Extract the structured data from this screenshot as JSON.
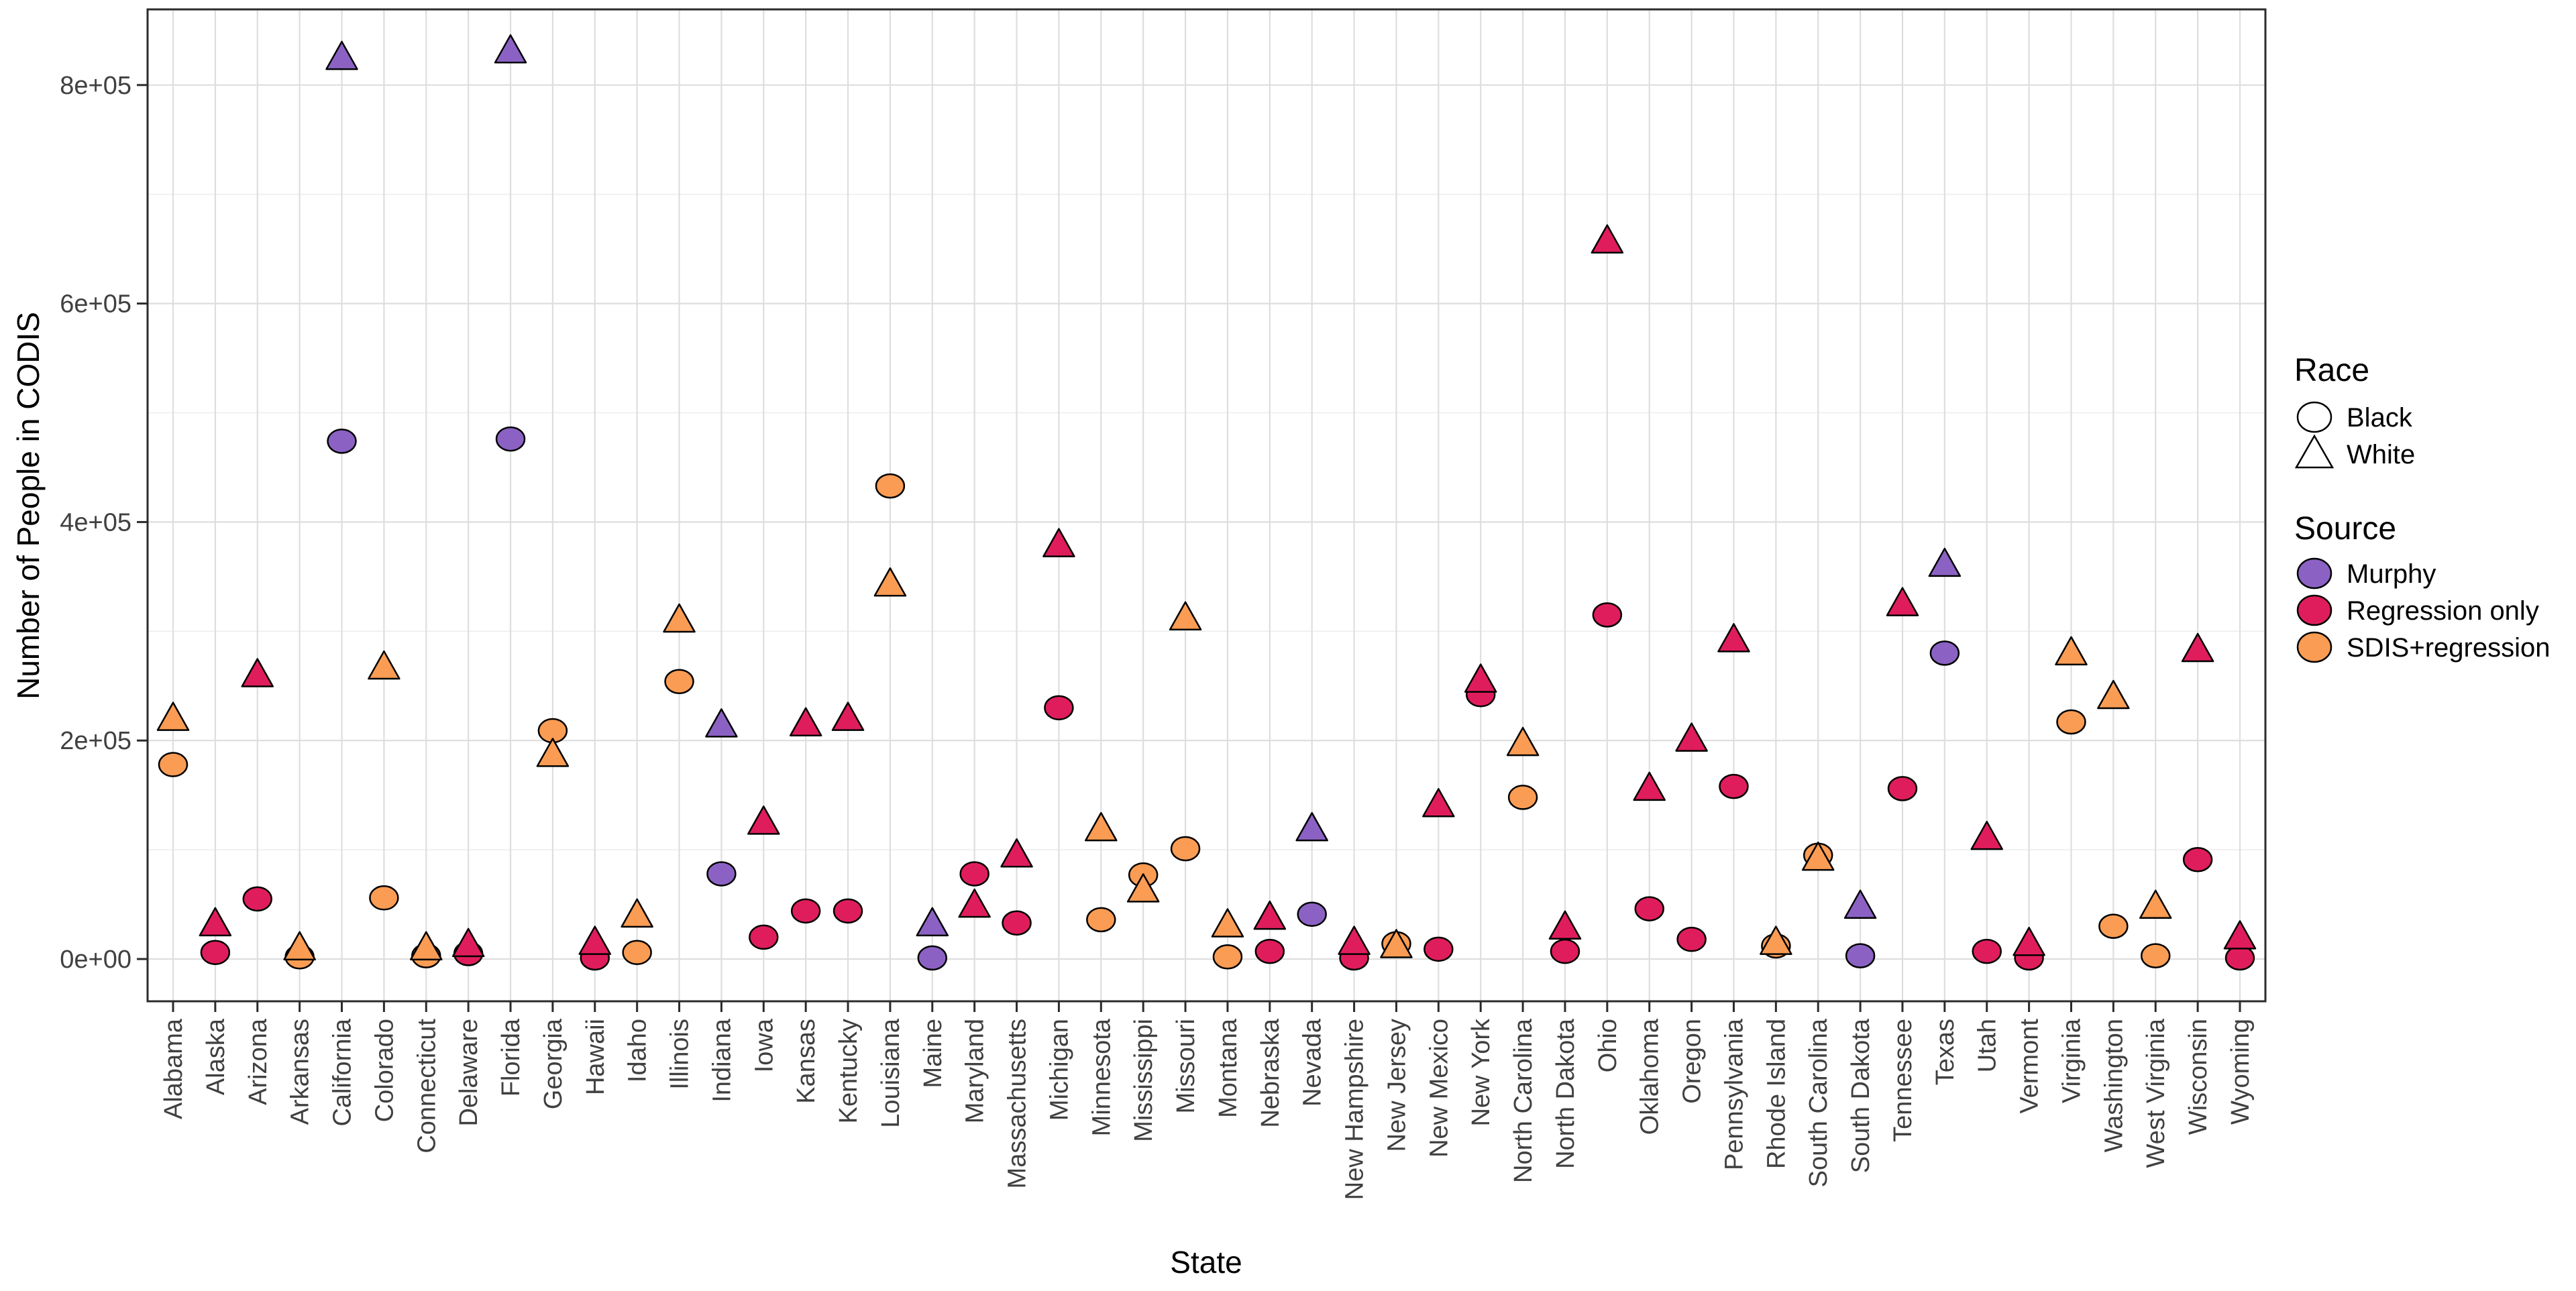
{
  "chart_data": {
    "type": "scatter",
    "title": "",
    "xlabel": "State",
    "ylabel": "Number of People in CODIS",
    "ylim": [
      0,
      870000
    ],
    "grid": true,
    "legend_position": "right",
    "y_ticks": [
      {
        "value": 0,
        "label": "0e+00"
      },
      {
        "value": 200000,
        "label": "2e+05"
      },
      {
        "value": 400000,
        "label": "4e+05"
      },
      {
        "value": 600000,
        "label": "6e+05"
      },
      {
        "value": 800000,
        "label": "8e+05"
      }
    ],
    "y_minor": [
      100000,
      300000,
      500000,
      700000
    ],
    "colors": {
      "murphy": "#8B62C4",
      "regression_only": "#E01D5C",
      "sdis_regression": "#FA9C53",
      "grid_major": "#DEDEDE",
      "grid_minor": "#EDEDED",
      "panel_border": "#2B2B2B",
      "tick_text": "#404040",
      "marker_outline": "#000000"
    },
    "legend": {
      "race_title": "Race",
      "race_items": [
        {
          "label": "Black",
          "shape": "circle"
        },
        {
          "label": "White",
          "shape": "triangle"
        }
      ],
      "source_title": "Source",
      "source_items": [
        {
          "label": "Murphy",
          "color_key": "murphy"
        },
        {
          "label": "Regression only",
          "color_key": "regression_only"
        },
        {
          "label": "SDIS+regression",
          "color_key": "sdis_regression"
        }
      ]
    },
    "shape_encoding": {
      "circle": "Black",
      "triangle": "White"
    },
    "states": [
      {
        "name": "Alabama",
        "source": "sdis_regression",
        "black": 178000,
        "white": 220000
      },
      {
        "name": "Alaska",
        "source": "regression_only",
        "black": 6000,
        "white": 32000
      },
      {
        "name": "Arizona",
        "source": "regression_only",
        "black": 55000,
        "white": 260000
      },
      {
        "name": "Arkansas",
        "source": "sdis_regression",
        "black": 2000,
        "white": 10000
      },
      {
        "name": "California",
        "source": "murphy",
        "black": 474000,
        "white": 825000
      },
      {
        "name": "Colorado",
        "source": "sdis_regression",
        "black": 56000,
        "white": 267000
      },
      {
        "name": "Connecticut",
        "source": "sdis_regression",
        "black": 3000,
        "white": 10000
      },
      {
        "name": "Delaware",
        "source": "regression_only",
        "black": 5000,
        "white": 13000
      },
      {
        "name": "Florida",
        "source": "murphy",
        "black": 476000,
        "white": 831000
      },
      {
        "name": "Georgia",
        "source": "sdis_regression",
        "black": 209000,
        "white": 187000
      },
      {
        "name": "Hawaii",
        "source": "regression_only",
        "black": 1000,
        "white": 15000
      },
      {
        "name": "Idaho",
        "source": "sdis_regression",
        "black": 6000,
        "white": 40000
      },
      {
        "name": "Illinois",
        "source": "sdis_regression",
        "black": 254000,
        "white": 310000
      },
      {
        "name": "Indiana",
        "source": "murphy",
        "black": 78000,
        "white": 214000
      },
      {
        "name": "Iowa",
        "source": "regression_only",
        "black": 20000,
        "white": 125000
      },
      {
        "name": "Kansas",
        "source": "regression_only",
        "black": 44000,
        "white": 215000
      },
      {
        "name": "Kentucky",
        "source": "regression_only",
        "black": 44000,
        "white": 220000
      },
      {
        "name": "Louisiana",
        "source": "sdis_regression",
        "black": 433000,
        "white": 343000
      },
      {
        "name": "Maine",
        "source": "murphy",
        "black": 1000,
        "white": 32000
      },
      {
        "name": "Maryland",
        "source": "regression_only",
        "black": 78000,
        "white": 49000
      },
      {
        "name": "Massachusetts",
        "source": "regression_only",
        "black": 33000,
        "white": 95000
      },
      {
        "name": "Michigan",
        "source": "regression_only",
        "black": 230000,
        "white": 379000
      },
      {
        "name": "Minnesota",
        "source": "sdis_regression",
        "black": 36000,
        "white": 119000
      },
      {
        "name": "Mississippi",
        "source": "sdis_regression",
        "black": 77000,
        "white": 63000
      },
      {
        "name": "Missouri",
        "source": "sdis_regression",
        "black": 101000,
        "white": 312000
      },
      {
        "name": "Montana",
        "source": "sdis_regression",
        "black": 2000,
        "white": 31000
      },
      {
        "name": "Nebraska",
        "source": "regression_only",
        "black": 7000,
        "white": 38000
      },
      {
        "name": "Nevada",
        "source": "murphy",
        "black": 41000,
        "white": 119000
      },
      {
        "name": "New Hampshire",
        "source": "regression_only",
        "black": 1000,
        "white": 15000
      },
      {
        "name": "New Jersey",
        "source": "sdis_regression",
        "black": 14000,
        "white": 12000
      },
      {
        "name": "New Mexico",
        "source": "regression_only",
        "black": 9000,
        "white": 141000
      },
      {
        "name": "New York",
        "source": "regression_only",
        "black": 242000,
        "white": 255000
      },
      {
        "name": "North Carolina",
        "source": "sdis_regression",
        "black": 148000,
        "white": 197000
      },
      {
        "name": "North Dakota",
        "source": "regression_only",
        "black": 7000,
        "white": 29000
      },
      {
        "name": "Ohio",
        "source": "regression_only",
        "black": 315000,
        "white": 657000
      },
      {
        "name": "Oklahoma",
        "source": "regression_only",
        "black": 46000,
        "white": 156000
      },
      {
        "name": "Oregon",
        "source": "regression_only",
        "black": 18000,
        "white": 201000
      },
      {
        "name": "Pennsylvania",
        "source": "regression_only",
        "black": 158000,
        "white": 292000
      },
      {
        "name": "Rhode Island",
        "source": "sdis_regression",
        "black": 12000,
        "white": 15000
      },
      {
        "name": "South Carolina",
        "source": "sdis_regression",
        "black": 95000,
        "white": 92000
      },
      {
        "name": "South Dakota",
        "source": "murphy",
        "black": 3000,
        "white": 48000
      },
      {
        "name": "Tennessee",
        "source": "regression_only",
        "black": 156000,
        "white": 325000
      },
      {
        "name": "Texas",
        "source": "murphy",
        "black": 280000,
        "white": 361000
      },
      {
        "name": "Utah",
        "source": "regression_only",
        "black": 7000,
        "white": 111000
      },
      {
        "name": "Vermont",
        "source": "regression_only",
        "black": 1000,
        "white": 14000
      },
      {
        "name": "Virginia",
        "source": "sdis_regression",
        "black": 217000,
        "white": 280000
      },
      {
        "name": "Washington",
        "source": "sdis_regression",
        "black": 30000,
        "white": 240000
      },
      {
        "name": "West Virginia",
        "source": "sdis_regression",
        "black": 3000,
        "white": 48000
      },
      {
        "name": "Wisconsin",
        "source": "regression_only",
        "black": 91000,
        "white": 283000
      },
      {
        "name": "Wyoming",
        "source": "regression_only",
        "black": 1000,
        "white": 20000
      }
    ]
  }
}
